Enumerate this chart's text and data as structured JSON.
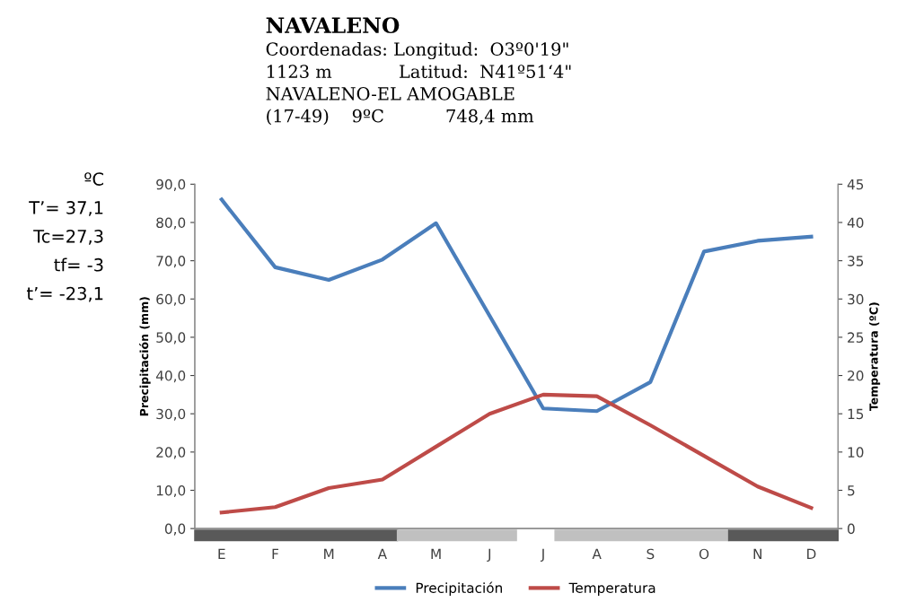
{
  "chart_data": {
    "type": "line",
    "title": "NAVALENO",
    "subtitle": "Coordenadas: Longitud:  O3º0'19\"\n1123 m            Latitud:  N41º51‘4\"\nNAVALENO-EL AMOGABLE\n(17-49)    9ºC           748,4 mm",
    "annotations": [
      "ºC",
      "T’= 37,1",
      "Tc=27,3",
      "tf= -3",
      "t’= -23,1"
    ],
    "categories": [
      "E",
      "F",
      "M",
      "A",
      "M",
      "J",
      "J",
      "A",
      "S",
      "O",
      "N",
      "D"
    ],
    "series": [
      {
        "name": "Precipitación",
        "color": "#4a7ebb",
        "values": [
          86.0,
          68.3,
          65.0,
          70.3,
          79.8,
          55.6,
          31.4,
          30.7,
          38.3,
          72.4,
          75.2,
          76.3
        ]
      },
      {
        "name": "Temperatura",
        "color": "#be4b48",
        "axis": "y2",
        "values": [
          2.1,
          2.8,
          5.3,
          6.4,
          10.7,
          15.0,
          17.5,
          17.3,
          13.5,
          9.5,
          5.5,
          2.7
        ]
      }
    ],
    "ylabel": "Precipitación (mm)",
    "y2label": "Temperatura (ºC)",
    "ylim": [
      0,
      90
    ],
    "yticks": [
      {
        "value": 0,
        "label": "0,0"
      },
      {
        "value": 10,
        "label": "10,0"
      },
      {
        "value": 20,
        "label": "20,0"
      },
      {
        "value": 30,
        "label": "30,0"
      },
      {
        "value": 40,
        "label": "40,0"
      },
      {
        "value": 50,
        "label": "50,0"
      },
      {
        "value": 60,
        "label": "60,0"
      },
      {
        "value": 70,
        "label": "70,0"
      },
      {
        "value": 80,
        "label": "80,0"
      },
      {
        "value": 90,
        "label": "90,0"
      }
    ],
    "y2lim": [
      0,
      45
    ],
    "y2ticks": [
      0,
      5,
      10,
      15,
      20,
      25,
      30,
      35,
      40,
      45
    ],
    "legend": "bottom",
    "grid": false,
    "marker": "none",
    "line_style": "solid"
  }
}
